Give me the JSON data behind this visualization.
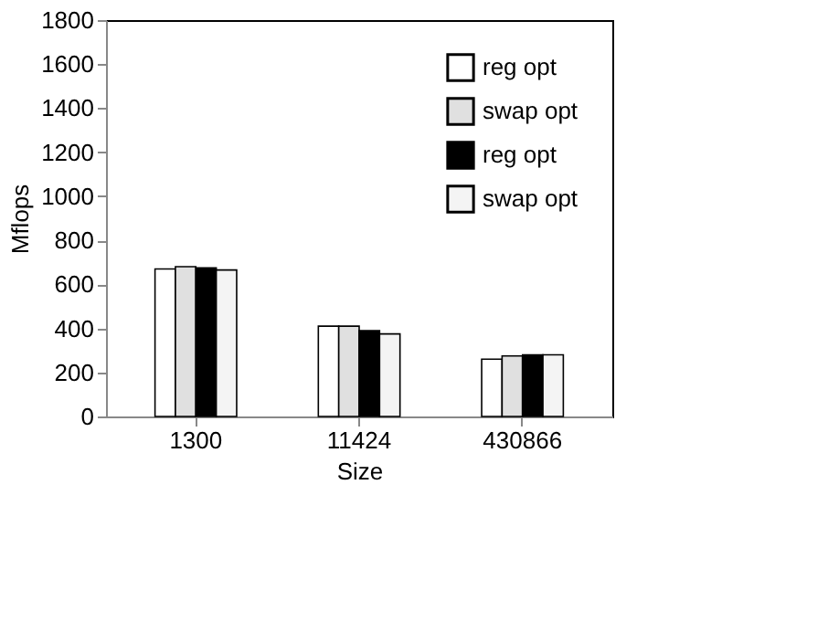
{
  "chart_data": {
    "type": "bar",
    "xlabel": "Size",
    "ylabel": "Mflops",
    "categories": [
      "1300",
      "11424",
      "430866"
    ],
    "series": [
      {
        "name": "reg opt",
        "color": "#ffffff",
        "values": [
          670,
          410,
          260
        ]
      },
      {
        "name": "swap opt",
        "color": "#e0e0e0",
        "values": [
          680,
          410,
          275
        ]
      },
      {
        "name": "reg opt",
        "color": "#000000",
        "values": [
          675,
          390,
          280
        ]
      },
      {
        "name": "swap opt",
        "color": "#f4f4f4",
        "values": [
          665,
          375,
          280
        ]
      }
    ],
    "ylim": [
      0,
      1800
    ],
    "yticks": [
      0,
      200,
      400,
      600,
      800,
      1000,
      1200,
      1400,
      1600,
      1800
    ],
    "grid": false,
    "legend": "top right"
  }
}
